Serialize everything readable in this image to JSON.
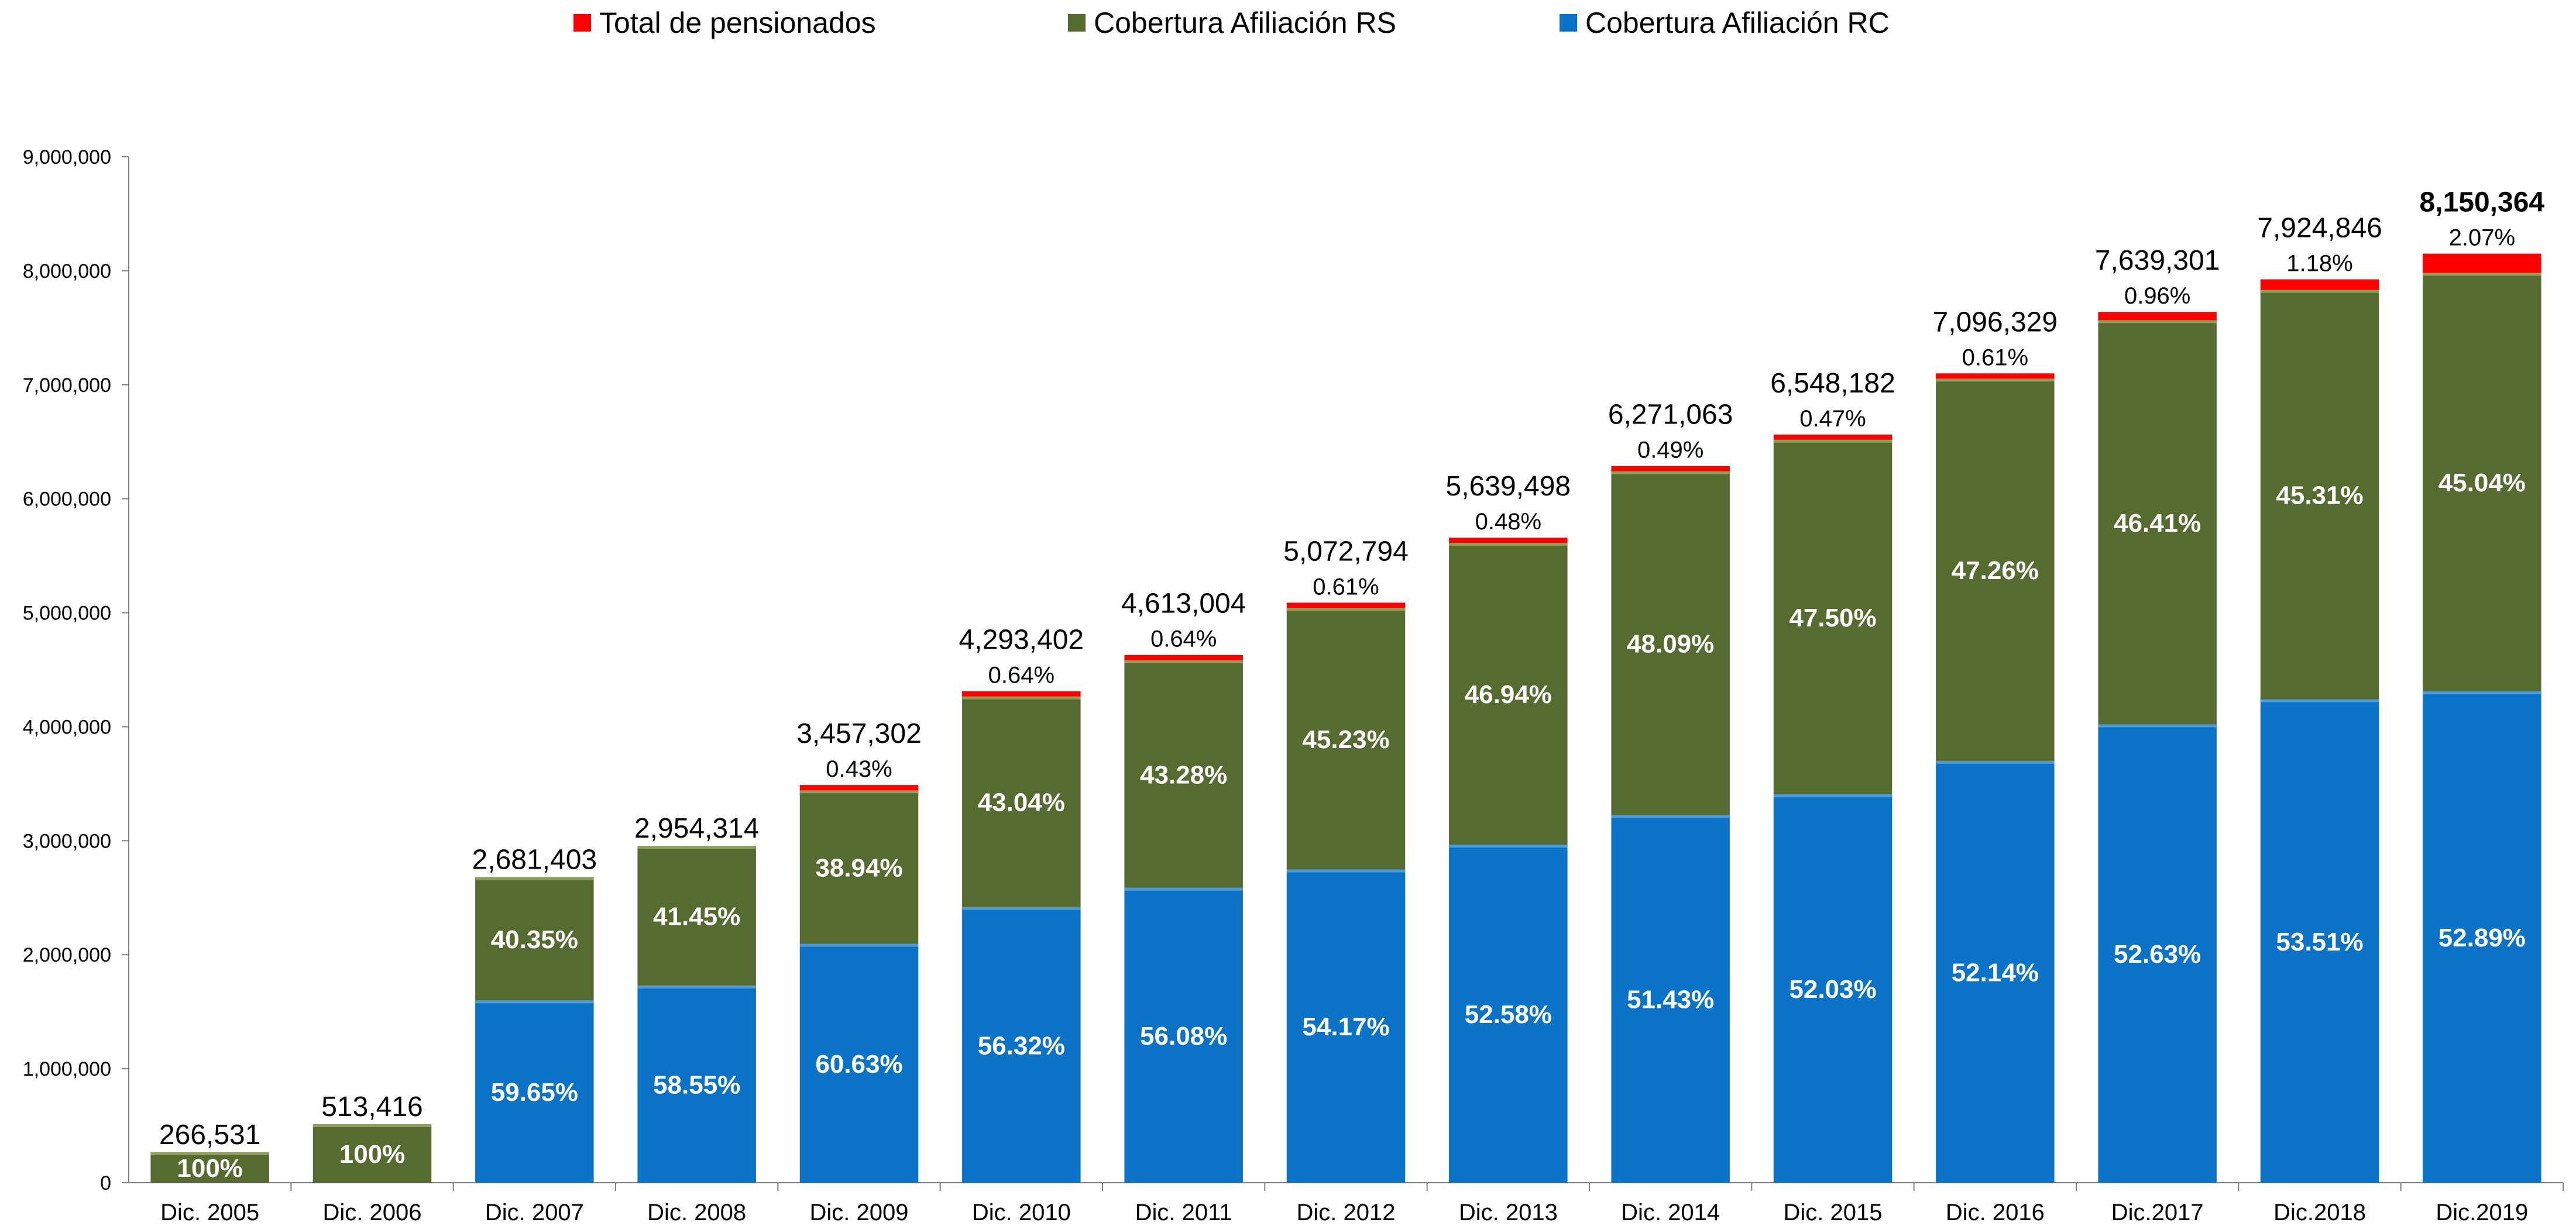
{
  "legend": [
    {
      "label": "Total de pensionados",
      "color": "#ff0000"
    },
    {
      "label": "Cobertura Afiliación RS",
      "color": "#556b2f"
    },
    {
      "label": "Cobertura Afiliación  RC",
      "color": "#0a73c8"
    }
  ],
  "chart_data": {
    "type": "bar",
    "stacked": true,
    "categories": [
      "Dic. 2005",
      "Dic. 2006",
      "Dic. 2007",
      "Dic. 2008",
      "Dic. 2009",
      "Dic. 2010",
      "Dic. 2011",
      "Dic. 2012",
      "Dic. 2013",
      "Dic. 2014",
      "Dic. 2015",
      "Dic. 2016",
      "Dic.2017",
      "Dic.2018",
      "Dic.2019"
    ],
    "y_ticks": [
      "0",
      "1,000,000",
      "2,000,000",
      "3,000,000",
      "4,000,000",
      "5,000,000",
      "6,000,000",
      "7,000,000",
      "8,000,000",
      "9,000,000"
    ],
    "ylim": [
      0,
      9000000
    ],
    "totals": [
      266531,
      513416,
      2681403,
      2954314,
      3457302,
      4293402,
      4613004,
      5072794,
      5639498,
      6271063,
      6548182,
      7096329,
      7639301,
      7924846,
      8150364
    ],
    "total_labels": [
      "266,531",
      "513,416",
      "2,681,403",
      "2,954,314",
      "3,457,302",
      "4,293,402",
      "4,613,004",
      "5,072,794",
      "5,639,498",
      "6,271,063",
      "6,548,182",
      "7,096,329",
      "7,639,301",
      "7,924,846",
      "8,150,364"
    ],
    "series": [
      {
        "name": "Cobertura Afiliación  RC",
        "color": "#0a73c8",
        "values": [
          0,
          0,
          1599457,
          1729750,
          2096062,
          2418045,
          2586973,
          2747891,
          2965248,
          3225208,
          3407018,
          3700066,
          4020564,
          4240585,
          4310751
        ],
        "labels": [
          "",
          "",
          "59.65%",
          "58.55%",
          "60.63%",
          "56.32%",
          "56.08%",
          "54.17%",
          "52.58%",
          "51.43%",
          "52.03%",
          "52.14%",
          "52.63%",
          "53.51%",
          "52.89%"
        ]
      },
      {
        "name": "Cobertura Afiliación RS",
        "color": "#556b2f",
        "values": [
          266531,
          513416,
          1081946,
          1224564,
          1346274,
          1847880,
          1996508,
          2294425,
          2647180,
          3015792,
          3110386,
          3353725,
          3545400,
          3590748,
          3670924
        ],
        "labels": [
          "100%",
          "100%",
          "40.35%",
          "41.45%",
          "38.94%",
          "43.04%",
          "43.28%",
          "45.23%",
          "46.94%",
          "48.09%",
          "47.50%",
          "47.26%",
          "46.41%",
          "45.31%",
          "45.04%"
        ]
      },
      {
        "name": "Total de pensionados",
        "color": "#ff0000",
        "values": [
          0,
          0,
          0,
          0,
          14966,
          27477,
          29523,
          30478,
          27070,
          30063,
          30778,
          42538,
          73337,
          93513,
          168689
        ],
        "labels": [
          "",
          "",
          "",
          "",
          "0.43%",
          "0.64%",
          "0.64%",
          "0.61%",
          "0.48%",
          "0.49%",
          "0.47%",
          "0.61%",
          "0.96%",
          "1.18%",
          "2.07%"
        ]
      }
    ],
    "xlabel": "",
    "ylabel": "",
    "grid": false,
    "legend_position": "top"
  }
}
